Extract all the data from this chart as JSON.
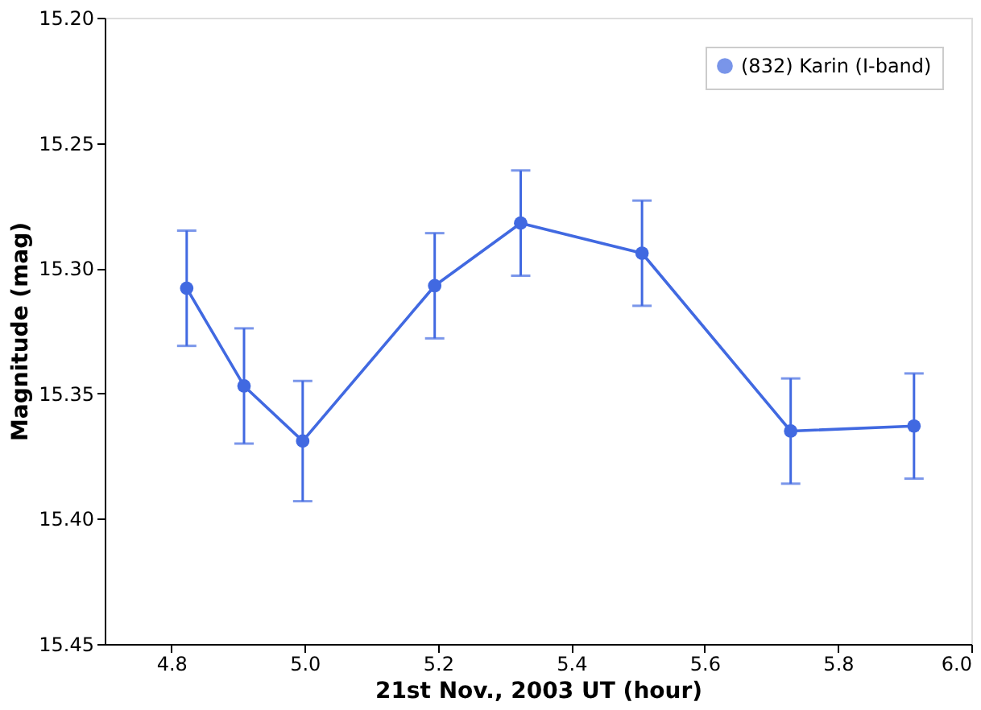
{
  "chart_data": {
    "type": "line",
    "xlabel": "21st Nov., 2003 UT (hour)",
    "ylabel": "Magnitude (mag)",
    "x": [
      4.823,
      4.909,
      4.997,
      5.195,
      5.324,
      5.506,
      5.729,
      5.914
    ],
    "series": [
      {
        "name": "(832) Karin (I-band)",
        "color": "#4169e1",
        "values": [
          15.308,
          15.347,
          15.369,
          15.307,
          15.282,
          15.294,
          15.365,
          15.363
        ],
        "errors": [
          0.023,
          0.023,
          0.024,
          0.021,
          0.021,
          0.021,
          0.021,
          0.021
        ]
      }
    ],
    "xlim": [
      4.7,
      6.0
    ],
    "ylim": [
      15.45,
      15.2
    ],
    "xticks": [
      {
        "value": 4.8,
        "label": "4.8"
      },
      {
        "value": 5.0,
        "label": "5.0"
      },
      {
        "value": 5.2,
        "label": "5.2"
      },
      {
        "value": 5.4,
        "label": "5.4"
      },
      {
        "value": 5.6,
        "label": "5.6"
      },
      {
        "value": 5.8,
        "label": "5.8"
      },
      {
        "value": 6.0,
        "label": "6.0"
      }
    ],
    "yticks": [
      {
        "value": 15.2,
        "label": "15.20"
      },
      {
        "value": 15.25,
        "label": "15.25"
      },
      {
        "value": 15.3,
        "label": "15.30"
      },
      {
        "value": 15.35,
        "label": "15.35"
      },
      {
        "value": 15.4,
        "label": "15.40"
      },
      {
        "value": 15.45,
        "label": "15.45"
      }
    ],
    "marker": "circle",
    "line_style": "solid",
    "grid": false,
    "legend": "top right"
  }
}
